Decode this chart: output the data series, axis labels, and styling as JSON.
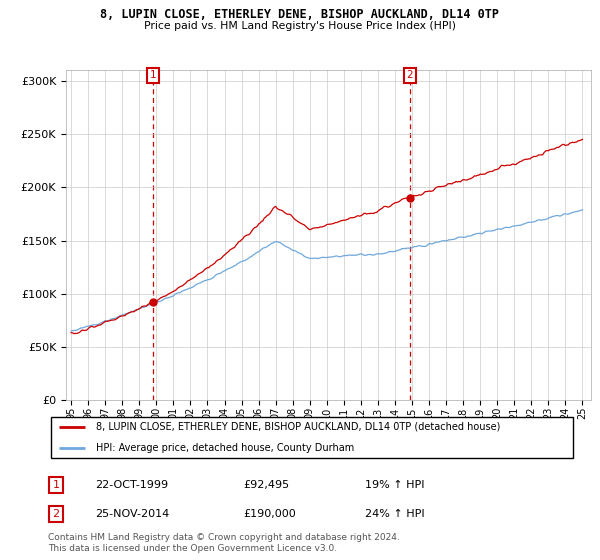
{
  "title": "8, LUPIN CLOSE, ETHERLEY DENE, BISHOP AUCKLAND, DL14 0TP",
  "subtitle": "Price paid vs. HM Land Registry's House Price Index (HPI)",
  "legend_line1": "8, LUPIN CLOSE, ETHERLEY DENE, BISHOP AUCKLAND, DL14 0TP (detached house)",
  "legend_line2": "HPI: Average price, detached house, County Durham",
  "transaction1_date": "22-OCT-1999",
  "transaction1_price": 92495,
  "transaction1_hpi": "19% ↑ HPI",
  "transaction2_date": "25-NOV-2014",
  "transaction2_price": 190000,
  "transaction2_hpi": "24% ↑ HPI",
  "footer": "Contains HM Land Registry data © Crown copyright and database right 2024.\nThis data is licensed under the Open Government Licence v3.0.",
  "hpi_color": "#6fa8dc",
  "price_color": "#cc0000",
  "marker_color": "#cc0000",
  "background_color": "#ffffff",
  "grid_color": "#cccccc",
  "ylim": [
    0,
    310000
  ],
  "yticks": [
    0,
    50000,
    100000,
    150000,
    200000,
    250000,
    300000
  ],
  "start_year": 1995,
  "end_year": 2025
}
